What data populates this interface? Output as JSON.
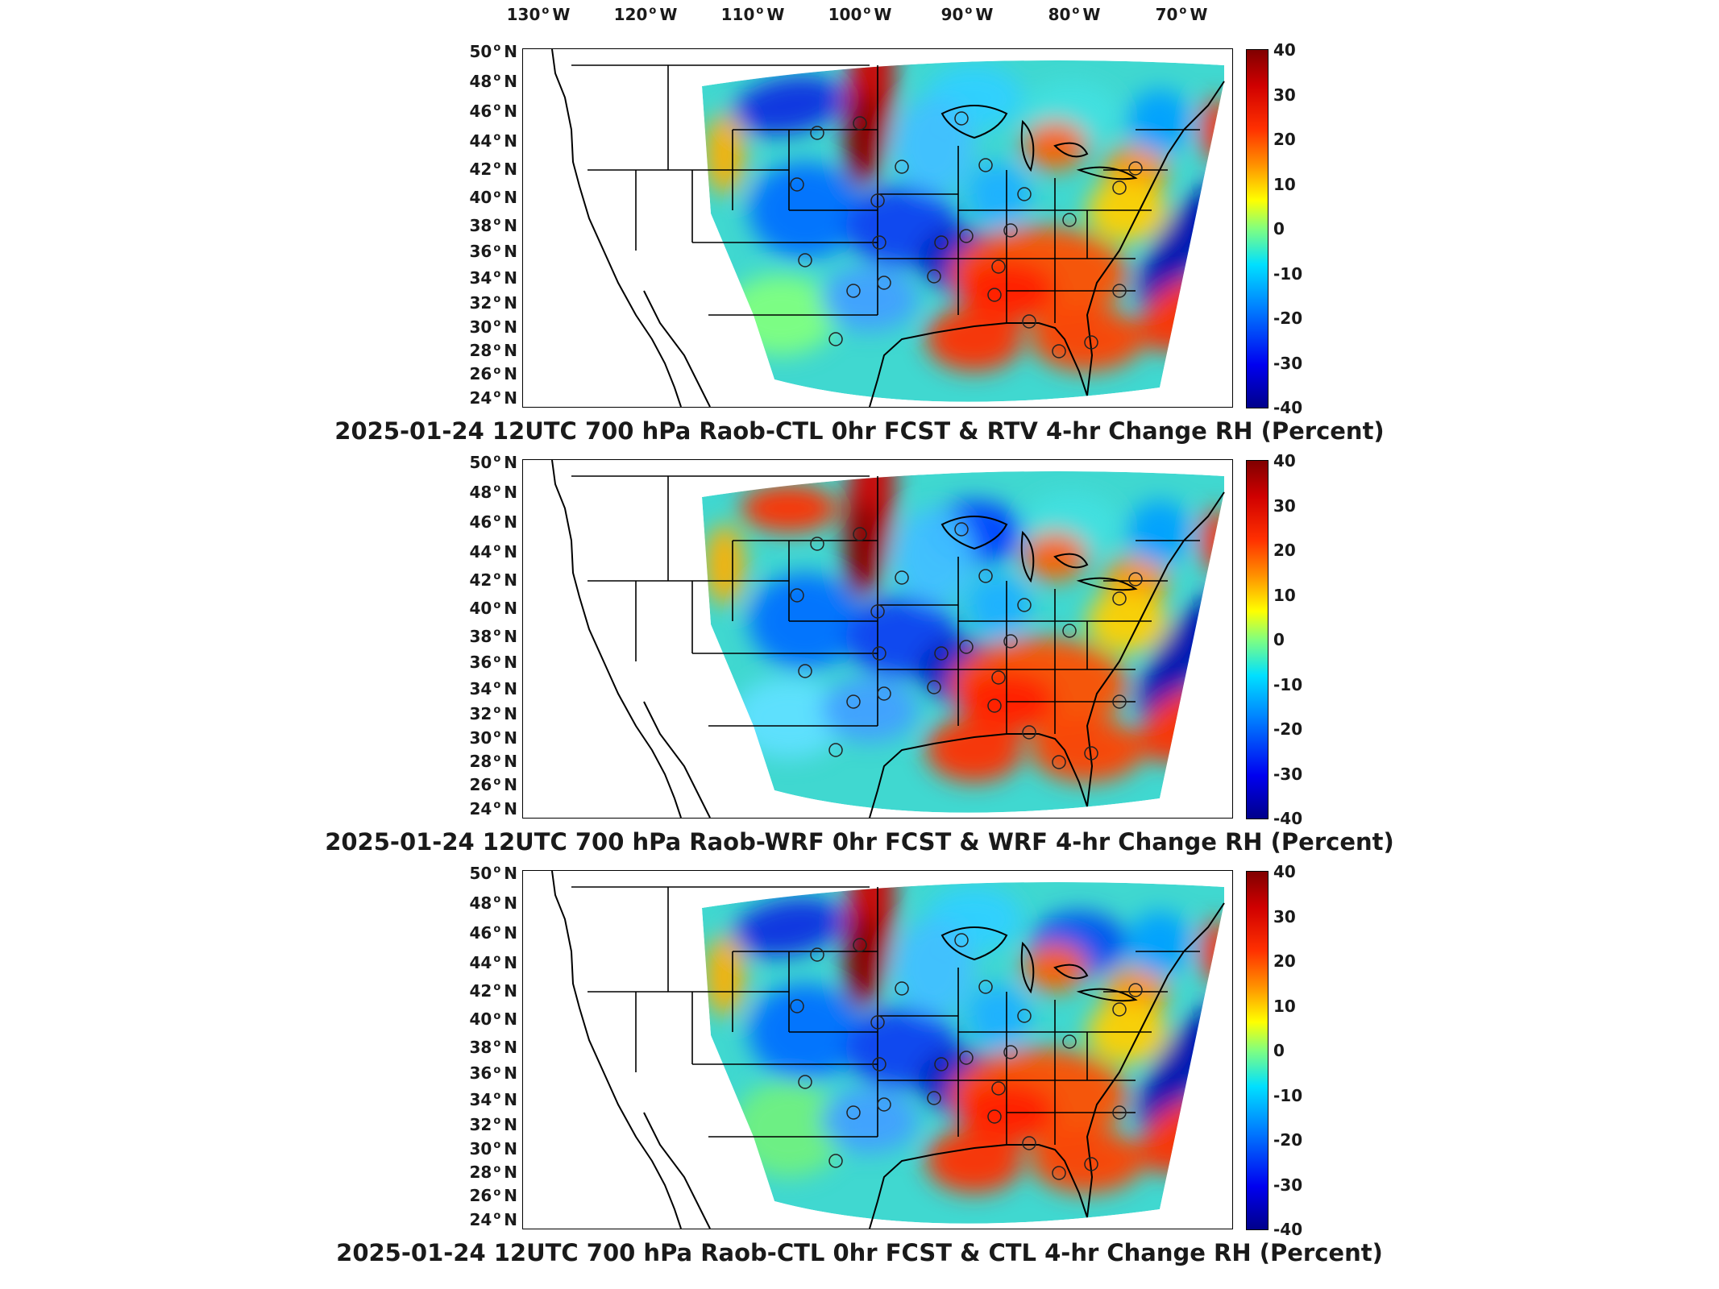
{
  "longitude_labels": [
    "130",
    "120",
    "110",
    "100",
    "90",
    "80",
    "70"
  ],
  "longitude_hemisphere": "W",
  "latitude_labels": [
    "50",
    "48",
    "46",
    "44",
    "42",
    "40",
    "38",
    "36",
    "34",
    "32",
    "30",
    "28",
    "26",
    "24"
  ],
  "latitude_hemisphere": "N",
  "colorbar": {
    "ticks": [
      "40",
      "30",
      "20",
      "10",
      "0",
      "-10",
      "-20",
      "-30",
      "-40"
    ],
    "min": -40,
    "max": 40,
    "colormap": "jet"
  },
  "panels": [
    {
      "title": "2025-01-24 12UTC 700 hPa Raob-CTL 0hr FCST & RTV 4-hr Change RH (Percent)"
    },
    {
      "title": "2025-01-24 12UTC 700 hPa Raob-WRF 0hr FCST & WRF 4-hr Change RH (Percent)"
    },
    {
      "title": "2025-01-24 12UTC 700 hPa Raob-CTL 0hr FCST & CTL 4-hr Change RH (Percent)"
    }
  ]
}
